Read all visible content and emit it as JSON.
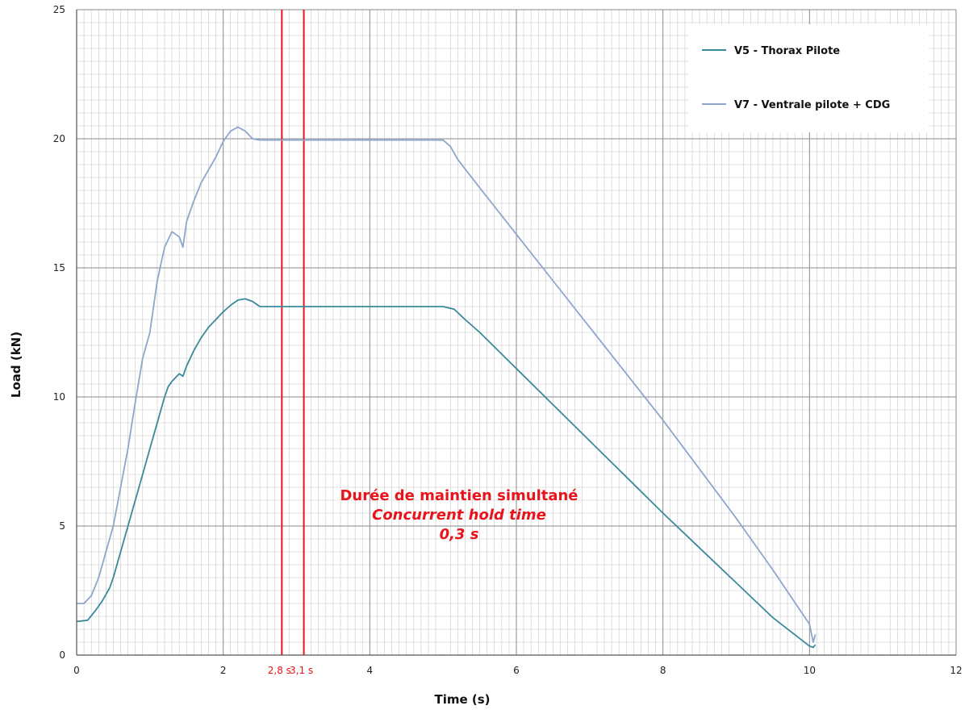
{
  "chart_data": {
    "type": "line",
    "title": "",
    "xlabel": "Time (s)",
    "ylabel": "Load (kN)",
    "xlim": [
      0,
      12
    ],
    "ylim": [
      0,
      25
    ],
    "x_ticks": [
      "0",
      "2",
      "4",
      "6",
      "8",
      "10",
      "12"
    ],
    "y_ticks": [
      "0",
      "5",
      "10",
      "15",
      "20",
      "25"
    ],
    "x_minor_step": 0.1,
    "y_minor_step": 0.5,
    "grid": true,
    "legend_position": "top-right",
    "series": [
      {
        "name": "V5 - Thorax Pilote",
        "color": "#3a8a9c",
        "x": [
          0,
          0.15,
          0.25,
          0.35,
          0.45,
          0.5,
          0.6,
          0.7,
          0.8,
          0.9,
          0.95,
          1.0,
          1.1,
          1.2,
          1.25,
          1.3,
          1.4,
          1.45,
          1.5,
          1.6,
          1.7,
          1.8,
          1.9,
          2.0,
          2.1,
          2.2,
          2.3,
          2.4,
          2.5,
          2.7,
          3.0,
          3.5,
          4.0,
          4.5,
          5.0,
          5.15,
          5.3,
          5.5,
          6.0,
          6.5,
          7.0,
          7.5,
          8.0,
          8.5,
          9.0,
          9.5,
          10.0,
          10.05,
          10.08
        ],
        "y": [
          1.3,
          1.35,
          1.7,
          2.1,
          2.6,
          3.0,
          4.0,
          5.0,
          6.0,
          7.0,
          7.5,
          8.0,
          9.0,
          10.0,
          10.4,
          10.6,
          10.9,
          10.8,
          11.2,
          11.8,
          12.3,
          12.7,
          13.0,
          13.3,
          13.55,
          13.75,
          13.8,
          13.7,
          13.5,
          13.5,
          13.5,
          13.5,
          13.5,
          13.5,
          13.5,
          13.4,
          13.0,
          12.5,
          11.1,
          9.7,
          8.3,
          6.9,
          5.5,
          4.15,
          2.8,
          1.45,
          0.35,
          0.3,
          0.4
        ]
      },
      {
        "name": "V7 - Ventrale pilote + CDG",
        "color": "#8ea6cc",
        "x": [
          0,
          0.1,
          0.2,
          0.3,
          0.4,
          0.5,
          0.6,
          0.7,
          0.8,
          0.9,
          0.95,
          1.0,
          1.1,
          1.2,
          1.3,
          1.4,
          1.45,
          1.5,
          1.6,
          1.7,
          1.8,
          1.9,
          2.0,
          2.1,
          2.2,
          2.3,
          2.4,
          2.5,
          2.7,
          3.0,
          3.5,
          4.0,
          4.5,
          5.0,
          5.1,
          5.2,
          5.5,
          6.0,
          6.5,
          7.0,
          7.5,
          8.0,
          8.5,
          9.0,
          9.5,
          10.0,
          10.05,
          10.08
        ],
        "y": [
          2.0,
          2.0,
          2.3,
          3.0,
          4.0,
          5.0,
          6.5,
          8.0,
          9.8,
          11.5,
          12.0,
          12.5,
          14.5,
          15.8,
          16.4,
          16.2,
          15.8,
          16.8,
          17.6,
          18.3,
          18.8,
          19.3,
          19.9,
          20.3,
          20.45,
          20.3,
          20.0,
          19.95,
          19.95,
          19.95,
          19.95,
          19.95,
          19.95,
          19.95,
          19.7,
          19.2,
          18.1,
          16.3,
          14.5,
          12.7,
          10.9,
          9.1,
          7.2,
          5.3,
          3.3,
          1.2,
          0.5,
          0.8
        ]
      }
    ],
    "vertical_lines": [
      {
        "x": 2.8,
        "label": "2,8 s",
        "color": "#e8141c"
      },
      {
        "x": 3.1,
        "label": "3,1 s",
        "color": "#e8141c"
      }
    ],
    "annotation": {
      "line1": "Durée de maintien simultané",
      "line2": "Concurrent hold time",
      "line3": "0,3 s",
      "color": "#e8141c"
    }
  }
}
